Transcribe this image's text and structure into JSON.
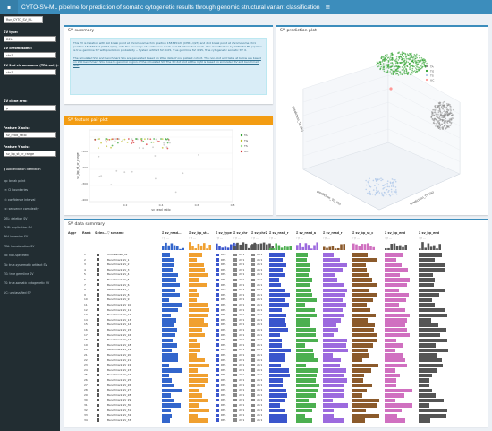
{
  "app": {
    "title": "CYTO-SV-ML pipeline for prediction of somatic cytogenetic results through genomic structural variant classification",
    "logo_glyph": "▪",
    "menu_glyph": "≡"
  },
  "sidebar": {
    "dataset_btn": "Run_CYTO_SV_ML",
    "sv_type": {
      "label": "SV type:",
      "value": "DEL"
    },
    "chr1": {
      "label": "SV chromosome:",
      "value": "chr1"
    },
    "chr2": {
      "label": "SV 2nd chromosome (TRA only):",
      "value": "chr1"
    },
    "clone": {
      "label": "SV clone arm:",
      "value": "p"
    },
    "x": {
      "label": "Feature X axis:",
      "value": "sv_read_ratio"
    },
    "y": {
      "label": "Feature Y axis:",
      "value": "sv_bp_st_cr_range"
    },
    "abbr_title": "Abbreviation definition",
    "abbr": [
      "bp: break point",
      "cr: CI boundaries",
      "ci: confidence interval",
      "cc: sequence complexity",
      "DEL: deletion SV",
      "DUP: duplication SV",
      "INV: inversion SV",
      "TRA: translocation SV",
      "na: non-specified",
      "TA: true-systematic artifact SV",
      "TG: true germline SV",
      "TS: true-somatic cytogenetic SV",
      "UC: unclassified SV"
    ]
  },
  "summary": {
    "title": "SV summary",
    "p1": "This SV is Deletion with 1st break point at chromosome chr1 position 158345129 (CHR1,Q23) and 2nd break point at chromosome chr1 position 158345414 (CHR1,Q23), with the coverage of 6 reference reads and 26 alternated reads. The classification by CYTO-SV-ML pipeline is true germline SV with prediction probability -- System artifact SV: 0.05, True germline SV: 0.95, True cytogenetic somatic SV: 0.",
    "p2": "The simulated SVs and benchmark SVs are generated based on WGS data of one patient cohort. The non-plot and table at below are based on 200 benchmark SVs close to genomic region of the simulated SV. The 3D dot plot at the right is based on simulated SV and benchmark SVs."
  },
  "pairplot": {
    "title": "SV feature pair plot",
    "xlabel": "sv_read_ratio",
    "ylabel": "sv_bp_st_cr_range",
    "xticks": [
      "0.2",
      "0.4",
      "0.6",
      "0.8"
    ],
    "yticks": [
      "-100",
      "-200",
      "-300",
      "-400"
    ],
    "legend": [
      "TA",
      "TG",
      "TS",
      "UC"
    ],
    "colors": {
      "TA": "#2ca02c",
      "TG": "#bcbd22",
      "TS": "#98df8a",
      "UC": "#d62728"
    }
  },
  "plot3d": {
    "title": "SV prediction plot",
    "legend": [
      "TA",
      "TG",
      "TS",
      "UC"
    ],
    "colors": {
      "TA": "#888888",
      "TG": "#2ca02c",
      "TS": "#aec7e8",
      "UC": "#ff9896"
    },
    "axis_x": "prediction_TG (%)",
    "axis_y": "prediction_TS (%)",
    "axis_z": "prediction_TA (%)"
  },
  "table": {
    "title": "SV data summary",
    "headers": [
      "Aggr",
      "Rank",
      "Selec…",
      "▽ svname",
      "Σ sv_read…",
      "Σ sv_bp_st…",
      "Σ sv_type",
      "Σ sv_chr",
      "Σ sv_chr2",
      "Σ sv_read_r",
      "Σ sv_read_a",
      "Σ sv_read_r",
      "Σ sv_bp_st_c",
      "Σ sv_bp_end",
      "Σ sv_bp_end"
    ],
    "rows": [
      {
        "rank": "1",
        "name": "Unclassified_SV",
        "type": "DEL",
        "chr": "chr1",
        "chr2": "chr1"
      },
      {
        "rank": "2",
        "name": "Benchmark SV_1",
        "type": "DEL",
        "chr": "chr1",
        "chr2": "chr1"
      },
      {
        "rank": "3",
        "name": "Benchmark SV_2",
        "type": "DEL",
        "chr": "chr1",
        "chr2": "chr1"
      },
      {
        "rank": "4",
        "name": "Benchmark SV_3",
        "type": "DEL",
        "chr": "chr1",
        "chr2": "chr1"
      },
      {
        "rank": "5",
        "name": "Benchmark SV_4",
        "type": "DEL",
        "chr": "chr1",
        "chr2": "chr1"
      },
      {
        "rank": "6",
        "name": "Benchmark SV_5",
        "type": "DEL",
        "chr": "chr1",
        "chr2": "chr1"
      },
      {
        "rank": "7",
        "name": "Benchmark SV_6",
        "type": "DEL",
        "chr": "chr1",
        "chr2": "chr1"
      },
      {
        "rank": "8",
        "name": "Benchmark SV_7",
        "type": "DEL",
        "chr": "chr1",
        "chr2": "chr1"
      },
      {
        "rank": "9",
        "name": "Benchmark SV_8",
        "type": "DEL",
        "chr": "chr1",
        "chr2": "chr1"
      },
      {
        "rank": "10",
        "name": "Benchmark SV_9",
        "type": "DEL",
        "chr": "chr1",
        "chr2": "chr1"
      },
      {
        "rank": "11",
        "name": "Benchmark SV_10",
        "type": "DEL",
        "chr": "chr1",
        "chr2": "chr1"
      },
      {
        "rank": "12",
        "name": "Benchmark SV_11",
        "type": "DEL",
        "chr": "chr1",
        "chr2": "chr1"
      },
      {
        "rank": "13",
        "name": "Benchmark SV_12",
        "type": "DEL",
        "chr": "chr1",
        "chr2": "chr1"
      },
      {
        "rank": "14",
        "name": "Benchmark SV_13",
        "type": "DEL",
        "chr": "chr1",
        "chr2": "chr1"
      },
      {
        "rank": "15",
        "name": "Benchmark SV_14",
        "type": "DEL",
        "chr": "chr1",
        "chr2": "chr1"
      },
      {
        "rank": "16",
        "name": "Benchmark SV_15",
        "type": "DEL",
        "chr": "chr1",
        "chr2": "chr1"
      },
      {
        "rank": "17",
        "name": "Benchmark SV_16",
        "type": "DEL",
        "chr": "chr1",
        "chr2": "chr1"
      },
      {
        "rank": "18",
        "name": "Benchmark SV_17",
        "type": "DEL",
        "chr": "chr1",
        "chr2": "chr1"
      },
      {
        "rank": "19",
        "name": "Benchmark SV_18",
        "type": "DEL",
        "chr": "chr1",
        "chr2": "chr1"
      },
      {
        "rank": "20",
        "name": "Benchmark SV_19",
        "type": "DEL",
        "chr": "chr1",
        "chr2": "chr1"
      },
      {
        "rank": "21",
        "name": "Benchmark SV_20",
        "type": "DEL",
        "chr": "chr1",
        "chr2": "chr1"
      },
      {
        "rank": "22",
        "name": "Benchmark SV_21",
        "type": "DEL",
        "chr": "chr1",
        "chr2": "chr1"
      },
      {
        "rank": "23",
        "name": "Benchmark SV_22",
        "type": "DEL",
        "chr": "chr1",
        "chr2": "chr1"
      },
      {
        "rank": "24",
        "name": "Benchmark SV_23",
        "type": "DEL",
        "chr": "chr1",
        "chr2": "chr1"
      },
      {
        "rank": "25",
        "name": "Benchmark SV_24",
        "type": "DEL",
        "chr": "chr1",
        "chr2": "chr1"
      },
      {
        "rank": "26",
        "name": "Benchmark SV_25",
        "type": "DEL",
        "chr": "chr1",
        "chr2": "chr1"
      },
      {
        "rank": "27",
        "name": "Benchmark SV_26",
        "type": "DEL",
        "chr": "chr1",
        "chr2": "chr1"
      },
      {
        "rank": "28",
        "name": "Benchmark SV_27",
        "type": "DEL",
        "chr": "chr1",
        "chr2": "chr1"
      },
      {
        "rank": "29",
        "name": "Benchmark SV_28",
        "type": "DEL",
        "chr": "chr1",
        "chr2": "chr1"
      },
      {
        "rank": "30",
        "name": "Benchmark SV_29",
        "type": "DEL",
        "chr": "chr1",
        "chr2": "chr1"
      },
      {
        "rank": "31",
        "name": "Benchmark SV_30",
        "type": "DEL",
        "chr": "chr1",
        "chr2": "chr1"
      },
      {
        "rank": "32",
        "name": "Benchmark SV_31",
        "type": "DEL",
        "chr": "chr1",
        "chr2": "chr1"
      },
      {
        "rank": "33",
        "name": "Benchmark SV_32",
        "type": "DEL",
        "chr": "chr1",
        "chr2": "chr1"
      },
      {
        "rank": "34",
        "name": "Benchmark SV_33",
        "type": "DEL",
        "chr": "chr1",
        "chr2": "chr1"
      }
    ],
    "bar_colors": [
      "#3366cc",
      "#f0a030",
      "#3a55cc",
      "#4caf50",
      "#9c6ade",
      "#8b5a2b",
      "#d070c0",
      "#555555"
    ]
  }
}
